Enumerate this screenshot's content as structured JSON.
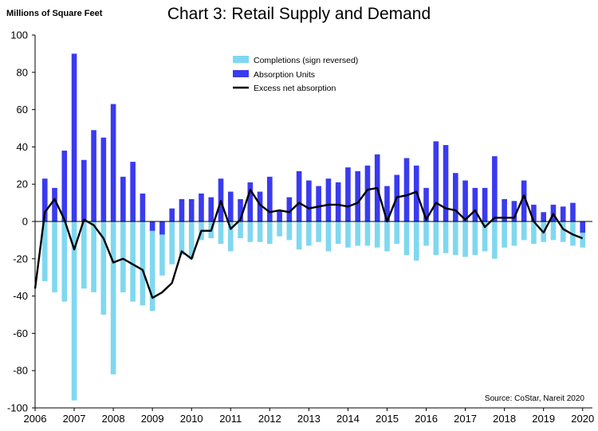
{
  "chart_data": {
    "type": "bar",
    "title": "Chart 3: Retail Supply and Demand",
    "ylabel": "Millions of Square Feet",
    "source": "Source: CoStar, Nareit 2020",
    "ylim": [
      -100,
      100
    ],
    "yticks": [
      "100",
      "80",
      "60",
      "40",
      "20",
      "0",
      "-20",
      "-40",
      "-60",
      "-80",
      "-100"
    ],
    "ytick_values": [
      100,
      80,
      60,
      40,
      20,
      0,
      -20,
      -40,
      -60,
      -80,
      -100
    ],
    "xticks": [
      "2006",
      "2007",
      "2008",
      "2009",
      "2010",
      "2011",
      "2012",
      "2013",
      "2014",
      "2015",
      "2016",
      "2017",
      "2018",
      "2019",
      "2020"
    ],
    "x_range": [
      2006,
      2020.25
    ],
    "legend_position": "top-center",
    "grid": false,
    "colors": {
      "completions": "#7fd8f0",
      "absorption": "#3a3af0",
      "excess": "#000000"
    },
    "quarters": [
      "2006Q1",
      "2006Q2",
      "2006Q3",
      "2006Q4",
      "2007Q1",
      "2007Q2",
      "2007Q3",
      "2007Q4",
      "2008Q1",
      "2008Q2",
      "2008Q3",
      "2008Q4",
      "2009Q1",
      "2009Q2",
      "2009Q3",
      "2009Q4",
      "2010Q1",
      "2010Q2",
      "2010Q3",
      "2010Q4",
      "2011Q1",
      "2011Q2",
      "2011Q3",
      "2011Q4",
      "2012Q1",
      "2012Q2",
      "2012Q3",
      "2012Q4",
      "2013Q1",
      "2013Q2",
      "2013Q3",
      "2013Q4",
      "2014Q1",
      "2014Q2",
      "2014Q3",
      "2014Q4",
      "2015Q1",
      "2015Q2",
      "2015Q3",
      "2015Q4",
      "2016Q1",
      "2016Q2",
      "2016Q3",
      "2016Q4",
      "2017Q1",
      "2017Q2",
      "2017Q3",
      "2017Q4",
      "2018Q1",
      "2018Q2",
      "2018Q3",
      "2018Q4",
      "2019Q1",
      "2019Q2",
      "2019Q3",
      "2019Q4",
      "2020Q1"
    ],
    "series": [
      {
        "name": "Completions (sign reversed)",
        "type": "bar",
        "values": [
          null,
          -32,
          -38,
          -43,
          -96,
          -36,
          -38,
          -50,
          -82,
          -38,
          -43,
          -45,
          -48,
          -29,
          -23,
          -18,
          -20,
          -10,
          -9,
          -12,
          -16,
          -9,
          -11,
          -11,
          -12,
          -8,
          -10,
          -15,
          -13,
          -11,
          -16,
          -12,
          -14,
          -13,
          -13,
          -14,
          -16,
          -12,
          -18,
          -21,
          -13,
          -18,
          -17,
          -18,
          -19,
          -18,
          -16,
          -20,
          -14,
          -13,
          -10,
          -12,
          -11,
          -10,
          -11,
          -13,
          -14
        ]
      },
      {
        "name": "Absorption Units",
        "type": "bar",
        "values": [
          null,
          23,
          18,
          38,
          90,
          33,
          49,
          45,
          63,
          24,
          32,
          15,
          -5,
          -7,
          7,
          12,
          12,
          15,
          13,
          23,
          16,
          12,
          21,
          16,
          24,
          6,
          13,
          27,
          22,
          19,
          23,
          21,
          29,
          27,
          30,
          36,
          19,
          25,
          34,
          30,
          18,
          43,
          41,
          26,
          22,
          18,
          18,
          35,
          12,
          11,
          22,
          9,
          5,
          9,
          8,
          10,
          -6
        ]
      },
      {
        "name": "Excess net absorption",
        "type": "line",
        "values": [
          -36,
          5,
          12,
          1,
          -15,
          1,
          -2,
          -9,
          -22,
          -20,
          -23,
          -26,
          -41,
          -38,
          -33,
          -16,
          -20,
          -5,
          -5,
          11,
          -4,
          1,
          17,
          9,
          5,
          6,
          5,
          10,
          7,
          8,
          9,
          9,
          8,
          10,
          17,
          18,
          0,
          13,
          14,
          16,
          1,
          10,
          7,
          6,
          1,
          6,
          -3,
          2,
          2,
          2,
          14,
          0,
          -6,
          4,
          -4,
          -7,
          -9
        ]
      }
    ]
  }
}
